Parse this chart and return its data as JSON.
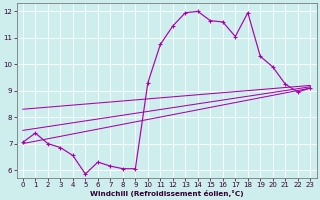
{
  "xlabel": "Windchill (Refroidissement éolien,°C)",
  "ylabel": "",
  "background_color": "#ceeeed",
  "line_color": "#aa00aa",
  "xlim": [
    -0.5,
    23.5
  ],
  "ylim": [
    5.7,
    12.3
  ],
  "yticks": [
    6,
    7,
    8,
    9,
    10,
    11,
    12
  ],
  "xticks": [
    0,
    1,
    2,
    3,
    4,
    5,
    6,
    7,
    8,
    9,
    10,
    11,
    12,
    13,
    14,
    15,
    16,
    17,
    18,
    19,
    20,
    21,
    22,
    23
  ],
  "curve_x": [
    0,
    1,
    2,
    3,
    4,
    5,
    6,
    7,
    8,
    9,
    10,
    11,
    12,
    13,
    14,
    15,
    16,
    17,
    18,
    19,
    20,
    21,
    22,
    23
  ],
  "curve_y": [
    7.05,
    7.4,
    7.0,
    6.85,
    6.55,
    5.85,
    6.3,
    6.15,
    6.05,
    6.05,
    9.3,
    10.75,
    11.45,
    11.95,
    12.0,
    11.65,
    11.6,
    11.05,
    11.95,
    10.3,
    9.9,
    9.25,
    8.95,
    9.1
  ],
  "line1_x": [
    0,
    23
  ],
  "line1_y": [
    8.3,
    9.2
  ],
  "line2_x": [
    0,
    23
  ],
  "line2_y": [
    7.5,
    9.15
  ],
  "line3_x": [
    0,
    23
  ],
  "line3_y": [
    7.0,
    9.1
  ]
}
